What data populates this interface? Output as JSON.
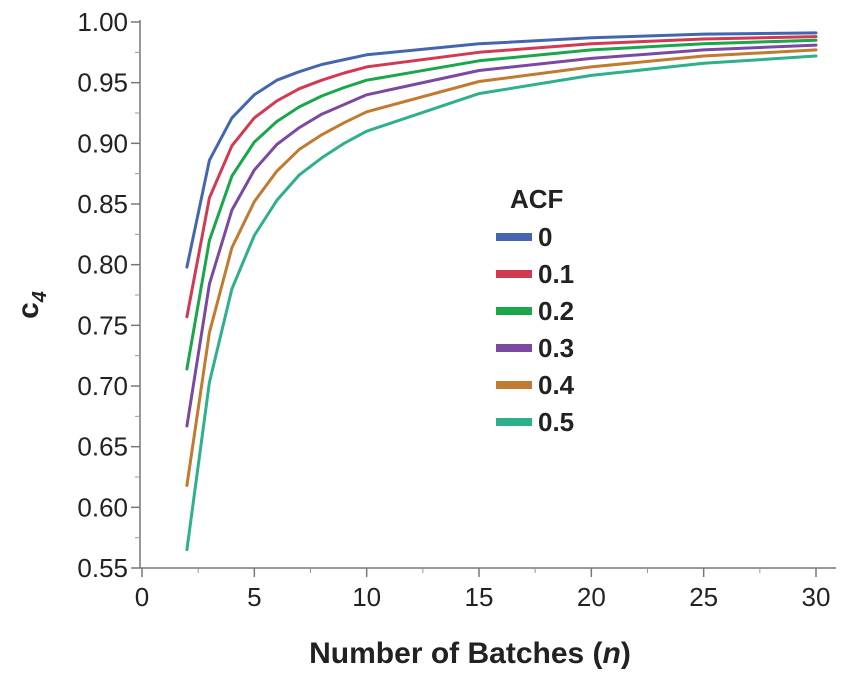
{
  "chart_data": {
    "type": "line",
    "xlabel": "Number of Batches (n)",
    "xlabel_main": "Number of Batches (",
    "xlabel_var": "n",
    "xlabel_close": ")",
    "ylabel_main": "c",
    "ylabel_sub": "4",
    "xlim": [
      0,
      30
    ],
    "ylim": [
      0.55,
      1.0
    ],
    "x_ticks": [
      0,
      5,
      10,
      15,
      20,
      25,
      30
    ],
    "x_tick_labels": [
      "0",
      "5",
      "10",
      "15",
      "20",
      "25",
      "30"
    ],
    "y_ticks": [
      0.55,
      0.6,
      0.65,
      0.7,
      0.75,
      0.8,
      0.85,
      0.9,
      0.95,
      1.0
    ],
    "y_tick_labels": [
      "0.55",
      "0.60",
      "0.65",
      "0.70",
      "0.75",
      "0.80",
      "0.85",
      "0.90",
      "0.95",
      "1.00"
    ],
    "grid": false,
    "legend": {
      "title": "ACF",
      "position": "center-right"
    },
    "x": [
      2,
      3,
      4,
      5,
      6,
      7,
      8,
      9,
      10,
      15,
      20,
      25,
      30
    ],
    "series": [
      {
        "name": "0",
        "color": "#4466b0",
        "values": [
          0.798,
          0.886,
          0.921,
          0.94,
          0.952,
          0.959,
          0.965,
          0.969,
          0.973,
          0.982,
          0.987,
          0.99,
          0.991
        ]
      },
      {
        "name": "0.1",
        "color": "#d23a52",
        "values": [
          0.757,
          0.855,
          0.898,
          0.921,
          0.935,
          0.945,
          0.952,
          0.958,
          0.963,
          0.975,
          0.982,
          0.986,
          0.988
        ]
      },
      {
        "name": "0.2",
        "color": "#1aa64a",
        "values": [
          0.714,
          0.82,
          0.873,
          0.901,
          0.918,
          0.93,
          0.939,
          0.946,
          0.952,
          0.968,
          0.977,
          0.982,
          0.985
        ]
      },
      {
        "name": "0.3",
        "color": "#7b4aa0",
        "values": [
          0.667,
          0.784,
          0.845,
          0.878,
          0.899,
          0.913,
          0.924,
          0.932,
          0.94,
          0.96,
          0.97,
          0.977,
          0.981
        ]
      },
      {
        "name": "0.4",
        "color": "#c27a30",
        "values": [
          0.618,
          0.744,
          0.814,
          0.852,
          0.877,
          0.895,
          0.907,
          0.917,
          0.926,
          0.951,
          0.963,
          0.972,
          0.977
        ]
      },
      {
        "name": "0.5",
        "color": "#2eb08c",
        "values": [
          0.565,
          0.703,
          0.78,
          0.824,
          0.853,
          0.874,
          0.888,
          0.9,
          0.91,
          0.941,
          0.956,
          0.966,
          0.972
        ]
      }
    ]
  }
}
